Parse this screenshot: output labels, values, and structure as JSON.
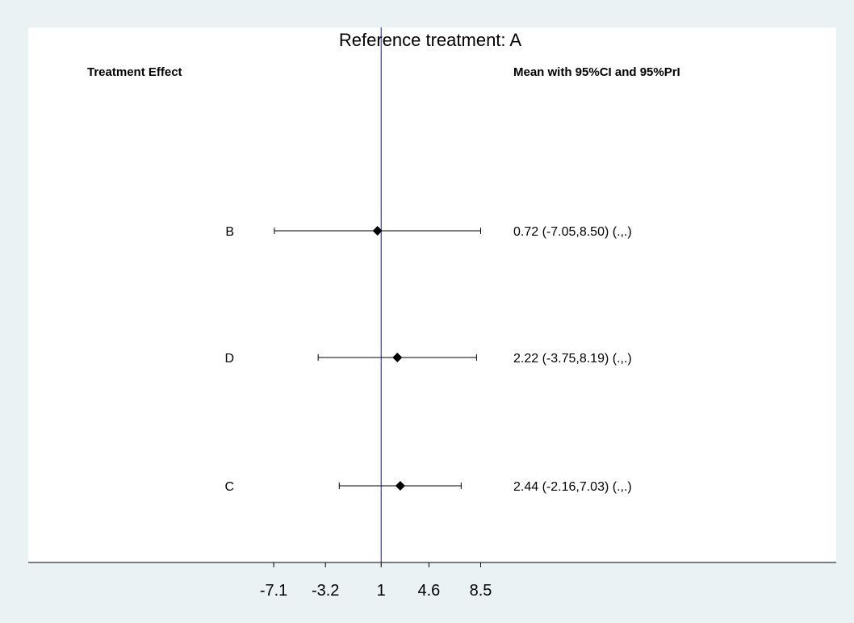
{
  "chart_data": {
    "type": "forest",
    "title": "Reference treatment: A",
    "left_header": "Treatment Effect",
    "right_header": "Mean with 95%CI and 95%PrI",
    "reference_value": 1,
    "xlim": [
      -25.6,
      35.3
    ],
    "x_ticks": [
      -7.1,
      -3.2,
      1,
      4.6,
      8.5
    ],
    "x_tick_labels": [
      "-7.1",
      "-3.2",
      "1",
      "4.6",
      "8.5"
    ],
    "rows": [
      {
        "label": "B",
        "mean": 0.72,
        "ci_low": -7.05,
        "ci_high": 8.5,
        "text": "0.72 (-7.05,8.50)  (.,.)"
      },
      {
        "label": "D",
        "mean": 2.22,
        "ci_low": -3.75,
        "ci_high": 8.19,
        "text": "2.22 (-3.75,8.19)  (.,.)"
      },
      {
        "label": "C",
        "mean": 2.44,
        "ci_low": -2.16,
        "ci_high": 7.03,
        "text": "2.44 (-2.16,7.03)  (.,.)"
      }
    ],
    "colors": {
      "background": "#eaf2f3",
      "plot_area": "#ffffff",
      "reference_line": "#1a1aa0",
      "marks": "#000000"
    }
  }
}
